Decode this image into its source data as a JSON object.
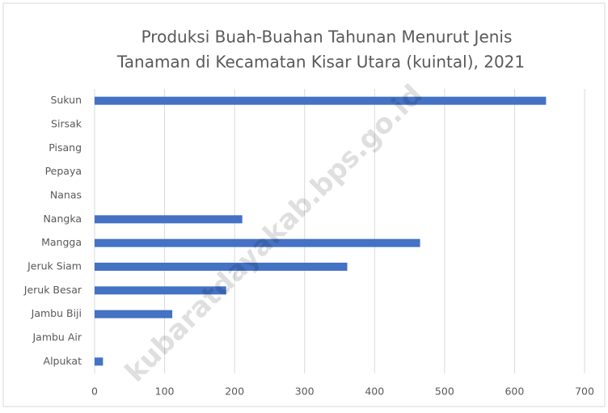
{
  "chart_data": {
    "type": "barh",
    "title": [
      "Produksi Buah-Buahan Tahunan Menurut Jenis",
      "Tanaman di Kecamatan Kisar Utara (kuintal), 2021"
    ],
    "watermark": "kubaratdayakab.bps.go.id",
    "categories": [
      "Sukun",
      "Sirsak",
      "Pisang",
      "Pepaya",
      "Nanas",
      "Nangka",
      "Mangga",
      "Jeruk Siam",
      "Jeruk Besar",
      "Jambu Biji",
      "Jambu Air",
      "Alpukat"
    ],
    "values": [
      645,
      0,
      0,
      0,
      0,
      211,
      465,
      361,
      188,
      111,
      0,
      12
    ],
    "color": "#4472c4",
    "xlim": [
      0,
      700
    ],
    "xticks": [
      0,
      100,
      200,
      300,
      400,
      500,
      600,
      700
    ],
    "grid": true
  }
}
